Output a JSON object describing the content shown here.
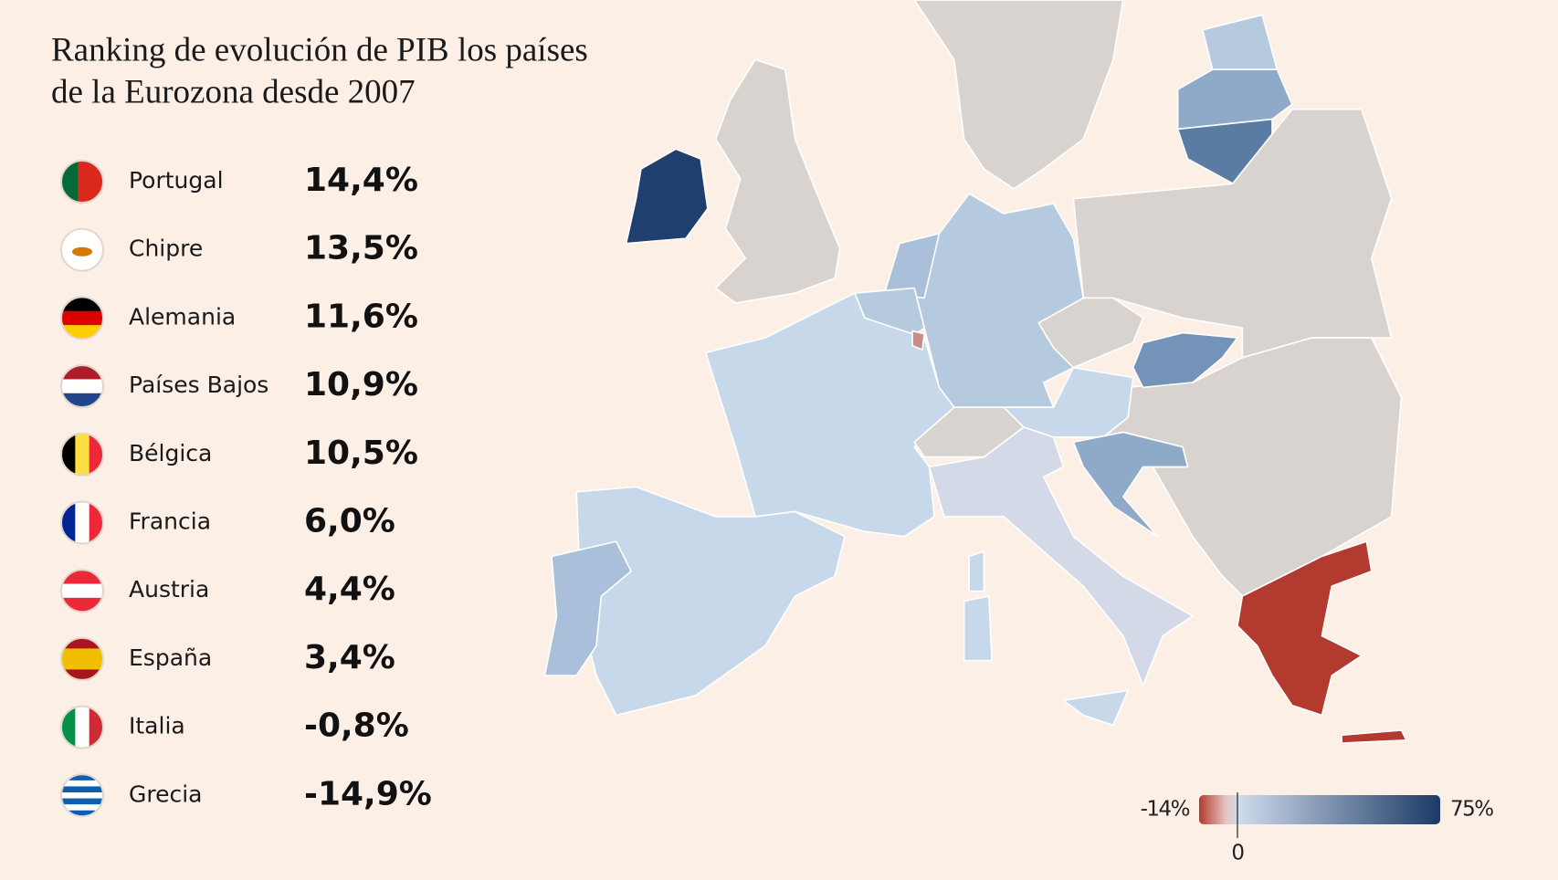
{
  "title": [
    "Ranking de evolución de PIB los países",
    "de la Eurozona desde 2007"
  ],
  "ranking": [
    {
      "country": "Portugal",
      "value": "14,4%"
    },
    {
      "country": "Chipre",
      "value": "13,5%"
    },
    {
      "country": "Alemania",
      "value": "11,6%"
    },
    {
      "country": "Países Bajos",
      "value": "10,9%"
    },
    {
      "country": "Bélgica",
      "value": "10,5%"
    },
    {
      "country": "Francia",
      "value": "6,0%"
    },
    {
      "country": "Austria",
      "value": "4,4%"
    },
    {
      "country": "España",
      "value": "3,4%"
    },
    {
      "country": "Italia",
      "value": "-0,8%"
    },
    {
      "country": "Grecia",
      "value": "-14,9%"
    }
  ],
  "legend": {
    "min": "-14%",
    "max": "75%",
    "zero": "0"
  }
}
